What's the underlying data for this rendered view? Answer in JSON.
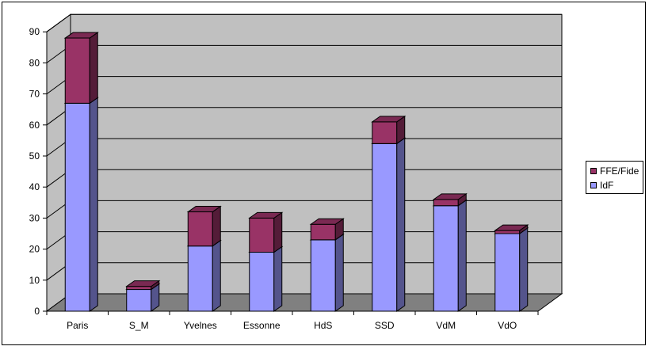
{
  "chart_data": {
    "type": "bar",
    "stacked": true,
    "style": "3d",
    "categories": [
      "Paris",
      "S_M",
      "Yvelnes",
      "Essonne",
      "HdS",
      "SSD",
      "VdM",
      "VdO"
    ],
    "series": [
      {
        "name": "IdF",
        "values": [
          67,
          7,
          21,
          19,
          23,
          54,
          34,
          25
        ],
        "color": "#9999ff"
      },
      {
        "name": "FFE/Fide",
        "values": [
          21,
          1,
          11,
          11,
          5,
          7,
          2,
          1
        ],
        "color": "#993366"
      }
    ],
    "ylim": [
      0,
      90
    ],
    "yticks": [
      0,
      10,
      20,
      30,
      40,
      50,
      60,
      70,
      80,
      90
    ],
    "grid": true,
    "legend_position": "right",
    "wall_color": "#c0c0c0",
    "floor_color": "#808080"
  }
}
